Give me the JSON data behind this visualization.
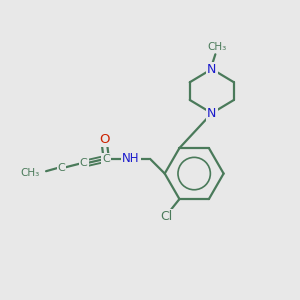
{
  "bg_color": "#e8e8e8",
  "bond_color": "#4a7a5a",
  "bond_width": 1.6,
  "n_color": "#1a1acc",
  "o_color": "#cc2200",
  "cl_color": "#4a7a5a",
  "figsize": [
    3.0,
    3.0
  ],
  "dpi": 100,
  "xlim": [
    0,
    10
  ],
  "ylim": [
    0,
    10
  ]
}
